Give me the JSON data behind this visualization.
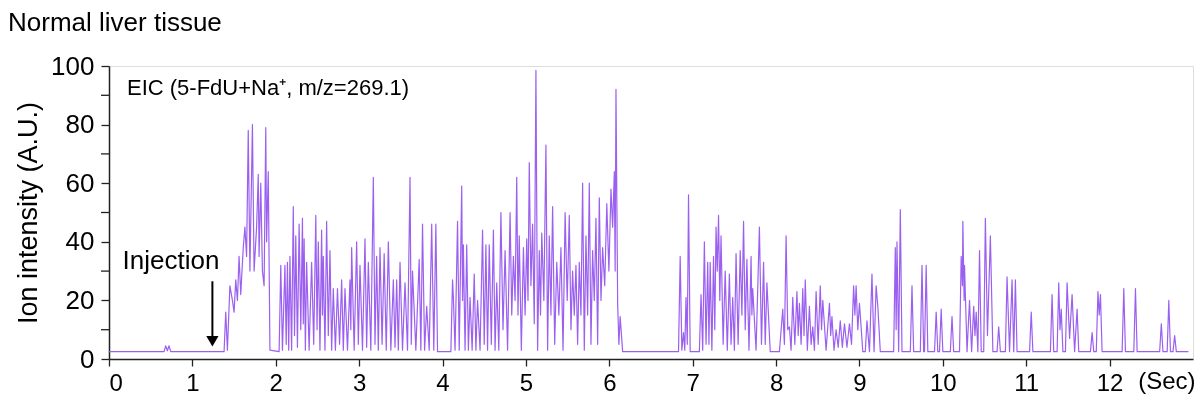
{
  "chart_data": {
    "type": "line",
    "title": "Normal liver tissue",
    "xlabel": "(Sec)",
    "ylabel": "Ion intensity (A.U.)",
    "annotations": [
      "EIC (5-FdU+Na⁺, m/z=269.1)",
      {
        "text": "Injection",
        "x": 1.24,
        "y": 4
      }
    ],
    "xlim": [
      0,
      13
    ],
    "ylim": [
      0,
      100
    ],
    "xticks": [
      0,
      1,
      2,
      3,
      4,
      5,
      6,
      7,
      8,
      9,
      10,
      11,
      12
    ],
    "yticks": [
      0,
      {
        "value": 10,
        "label": null
      },
      20,
      {
        "value": 30,
        "label": null
      },
      40,
      {
        "value": 50,
        "label": null
      },
      60,
      {
        "value": 70,
        "label": null
      },
      80,
      {
        "value": 90,
        "label": null
      },
      100
    ],
    "line_style": "solid",
    "x": [
      0,
      0.66,
      0.68,
      0.7,
      0.72,
      0.74,
      1.38,
      1.4,
      1.42,
      1.45,
      1.48,
      1.5,
      1.52,
      1.54,
      1.56,
      1.58,
      1.61,
      1.63,
      1.65,
      1.67,
      1.69,
      1.72,
      1.74,
      1.77,
      1.79,
      1.8,
      1.82,
      1.84,
      1.86,
      1.88,
      1.89,
      1.91,
      1.93,
      2.04,
      2.06,
      2.08,
      2.11,
      2.125,
      2.14,
      2.155,
      2.17,
      2.19,
      2.21,
      2.225,
      2.24,
      2.26,
      2.28,
      2.3,
      2.32,
      2.33,
      2.34,
      2.355,
      2.37,
      2.4,
      2.43,
      2.455,
      2.48,
      2.495,
      2.51,
      2.53,
      2.55,
      2.56,
      2.57,
      2.59,
      2.61,
      2.63,
      2.65,
      2.67,
      2.69,
      2.715,
      2.74,
      2.765,
      2.79,
      2.81,
      2.83,
      2.86,
      2.89,
      2.9,
      2.91,
      2.94,
      2.97,
      2.99,
      3.01,
      3.04,
      3.07,
      3.09,
      3.11,
      3.14,
      3.17,
      3.19,
      3.21,
      3.23,
      3.25,
      3.275,
      3.3,
      3.325,
      3.35,
      3.38,
      3.41,
      3.43,
      3.45,
      3.47,
      3.49,
      3.52,
      3.55,
      3.58,
      3.61,
      3.625,
      3.64,
      3.68,
      3.72,
      3.74,
      3.76,
      3.785,
      3.81,
      3.84,
      3.87,
      3.895,
      3.92,
      3.94,
      4.1,
      4.12,
      4.13,
      4.15,
      4.18,
      4.2,
      4.23,
      4.24,
      4.25,
      4.27,
      4.29,
      4.31,
      4.33,
      4.355,
      4.38,
      4.4,
      4.42,
      4.45,
      4.48,
      4.5,
      4.52,
      4.54,
      4.56,
      4.585,
      4.61,
      4.63,
      4.65,
      4.675,
      4.7,
      4.725,
      4.75,
      4.78,
      4.81,
      4.83,
      4.85,
      4.87,
      4.89,
      4.905,
      4.92,
      4.945,
      4.97,
      4.99,
      5.01,
      5.025,
      5.04,
      5.06,
      5.08,
      5.1,
      5.12,
      5.14,
      5.16,
      5.175,
      5.19,
      5.215,
      5.24,
      5.26,
      5.28,
      5.3,
      5.32,
      5.345,
      5.37,
      5.395,
      5.42,
      5.445,
      5.47,
      5.495,
      5.52,
      5.54,
      5.56,
      5.58,
      5.6,
      5.62,
      5.64,
      5.66,
      5.68,
      5.7,
      5.72,
      5.74,
      5.76,
      5.78,
      5.8,
      5.82,
      5.84,
      5.86,
      5.88,
      5.9,
      5.92,
      5.945,
      5.97,
      5.995,
      6.02,
      6.04,
      6.06,
      6.07,
      6.08,
      6.1,
      6.115,
      6.13,
      6.16,
      6.83,
      6.85,
      6.87,
      6.89,
      6.905,
      6.92,
      6.935,
      6.95,
      6.97,
      7.08,
      7.1,
      7.12,
      7.14,
      7.16,
      7.18,
      7.195,
      7.21,
      7.23,
      7.25,
      7.265,
      7.28,
      7.295,
      7.31,
      7.325,
      7.34,
      7.365,
      7.39,
      7.415,
      7.44,
      7.46,
      7.48,
      7.5,
      7.52,
      7.545,
      7.57,
      7.59,
      7.61,
      7.63,
      7.65,
      7.675,
      7.7,
      7.71,
      7.72,
      7.76,
      7.8,
      7.825,
      7.85,
      7.87,
      7.89,
      7.93,
      8.04,
      8.08,
      8.1,
      8.12,
      8.14,
      8.16,
      8.18,
      8.2,
      8.225,
      8.25,
      8.265,
      8.28,
      8.3,
      8.32,
      8.335,
      8.35,
      8.375,
      8.4,
      8.42,
      8.44,
      8.46,
      8.48,
      8.505,
      8.53,
      8.545,
      8.56,
      8.6,
      8.64,
      8.655,
      8.67,
      8.695,
      8.72,
      8.745,
      8.77,
      8.795,
      8.82,
      8.85,
      8.88,
      8.905,
      8.93,
      8.945,
      8.96,
      8.98,
      9,
      9.04,
      9.07,
      9.09,
      9.12,
      9.15,
      9.175,
      9.2,
      9.22,
      9.25,
      9.41,
      9.43,
      9.44,
      9.45,
      9.47,
      9.49,
      9.51,
      9.61,
      9.63,
      9.65,
      9.73,
      9.75,
      9.77,
      9.78,
      9.8,
      9.82,
      9.9,
      9.92,
      9.94,
      9.96,
      9.98,
      10,
      10.09,
      10.11,
      10.13,
      10.2,
      10.22,
      10.235,
      10.24,
      10.255,
      10.26,
      10.29,
      10.32,
      10.345,
      10.37,
      10.385,
      10.4,
      10.42,
      10.44,
      10.46,
      10.49,
      10.51,
      10.535,
      10.57,
      10.6,
      10.65,
      10.67,
      10.69,
      10.75,
      10.77,
      10.8,
      10.83,
      10.85,
      10.87,
      10.89,
      11.04,
      11.06,
      11.08,
      11.29,
      11.31,
      11.33,
      11.37,
      11.39,
      11.405,
      11.42,
      11.44,
      11.47,
      11.49,
      11.52,
      11.55,
      11.58,
      11.61,
      11.63,
      11.77,
      11.79,
      11.81,
      11.84,
      11.86,
      11.875,
      11.89,
      11.91,
      12.15,
      12.17,
      12.19,
      12.29,
      12.31,
      12.33,
      12.6,
      12.62,
      12.64,
      12.69,
      12.71,
      12.73,
      12.76,
      12.78,
      12.8,
      12.94
    ],
    "series": [
      {
        "color": "#9b60f0",
        "values": [
          2.5,
          2.5,
          4.5,
          2.8,
          4.5,
          2.5,
          2.5,
          16,
          3,
          25,
          20,
          16,
          27,
          20,
          35,
          22,
          38,
          45,
          35,
          78,
          30,
          80,
          30,
          45,
          63,
          35,
          60,
          30,
          25,
          79,
          40,
          64,
          3,
          2.5,
          32,
          3,
          32,
          5,
          33,
          3,
          35,
          3,
          52,
          8,
          42,
          4,
          46,
          10,
          48,
          12,
          41,
          3,
          33,
          3,
          33,
          5,
          49,
          10,
          40,
          3,
          44,
          15,
          35,
          3,
          47,
          8,
          37,
          3,
          24,
          3,
          24,
          5,
          27,
          3,
          24,
          3,
          27,
          10,
          38,
          3,
          40,
          5,
          32,
          3,
          41,
          4,
          33,
          3,
          62,
          5,
          35,
          3,
          38,
          5,
          36,
          3,
          40,
          3,
          27,
          4,
          27,
          3,
          33,
          3,
          26,
          3,
          62,
          5,
          30,
          3,
          34,
          3,
          46,
          3,
          18,
          3,
          46,
          3,
          46,
          2.5,
          2.5,
          27,
          21,
          3,
          47,
          3,
          59,
          20,
          39,
          3,
          39,
          3,
          21,
          3,
          29,
          3,
          20,
          3,
          44,
          5,
          39,
          3,
          39,
          5,
          44,
          3,
          26,
          3,
          50,
          10,
          37,
          3,
          50,
          15,
          35,
          20,
          62,
          15,
          42,
          3,
          38,
          15,
          41,
          20,
          67,
          25,
          46,
          12,
          98.5,
          3,
          37,
          15,
          43,
          20,
          73,
          3,
          42,
          15,
          52,
          5,
          33,
          15,
          38,
          3,
          50,
          20,
          49,
          10,
          30,
          15,
          32,
          5,
          33,
          15,
          60,
          3,
          42,
          15,
          60,
          5,
          37,
          20,
          48,
          5,
          55,
          20,
          38,
          25,
          53,
          30,
          58,
          45,
          64,
          30,
          92,
          19,
          5,
          14.5,
          2.5,
          2.5,
          35,
          3,
          9,
          3,
          21,
          5,
          56,
          2.5,
          2.5,
          22,
          3,
          40,
          5,
          33,
          5,
          33,
          3,
          35,
          10,
          45,
          30,
          49,
          20,
          42,
          5,
          30,
          3,
          29,
          5,
          21,
          3,
          36,
          5,
          37,
          15,
          47,
          10,
          34,
          3,
          35,
          15,
          24,
          3,
          45,
          5,
          33,
          5,
          26,
          2.5,
          2.5,
          17,
          5,
          42,
          10,
          11,
          3,
          21,
          5,
          23,
          8,
          19,
          5,
          24,
          8,
          27,
          3,
          18,
          5,
          11,
          3,
          23,
          5,
          25,
          10,
          20,
          3,
          19,
          8,
          14.5,
          3,
          10,
          4,
          13,
          4,
          12,
          4,
          12,
          5,
          25,
          15,
          25,
          10,
          19,
          2.5,
          2.5,
          13,
          2.5,
          29,
          2.5,
          25,
          18,
          2.5,
          2.5,
          38,
          10,
          40,
          2.5,
          51,
          2.5,
          2.5,
          25,
          2.5,
          2.5,
          32,
          2.5,
          2.5,
          32,
          2.5,
          2.5,
          16,
          2.5,
          2.5,
          17,
          2.5,
          2.5,
          14.5,
          2.5,
          2.5,
          35,
          25,
          47,
          20,
          32,
          2.5,
          20,
          2.5,
          18,
          8,
          16,
          2.5,
          37,
          2.5,
          2.5,
          48,
          8,
          42,
          2.5,
          2.5,
          11,
          2.5,
          2.5,
          28,
          2.5,
          27,
          2.5,
          27,
          2.5,
          2.5,
          16,
          2.5,
          2.5,
          22,
          2.5,
          2.5,
          26,
          10,
          17,
          2.5,
          2.5,
          26,
          7,
          22,
          2.5,
          17,
          2.5,
          2.5,
          9,
          2.5,
          2.5,
          23,
          15,
          22,
          2.5,
          2.5,
          24,
          2.5,
          2.5,
          24,
          2.5,
          2.5,
          12,
          2.5,
          2.5,
          20,
          2.5,
          2.5,
          8,
          2.5,
          2.5
        ]
      }
    ]
  }
}
